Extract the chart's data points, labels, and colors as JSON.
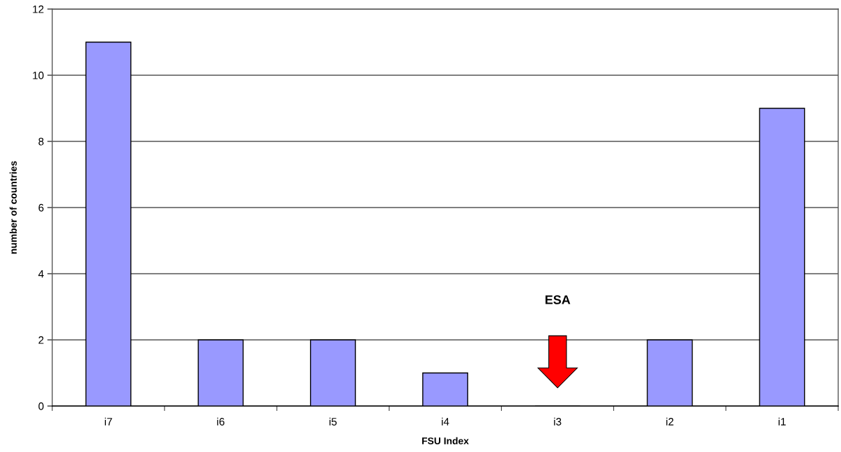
{
  "chart_data": {
    "type": "bar",
    "xlabel": "FSU Index",
    "ylabel": "number of countries",
    "categories": [
      "i7",
      "i6",
      "i5",
      "i4",
      "i3",
      "i2",
      "i1"
    ],
    "values": [
      11,
      2,
      2,
      1,
      0,
      2,
      9
    ],
    "color": "#9999ff",
    "ylim": [
      0,
      12
    ],
    "yticks": [
      0,
      2,
      4,
      6,
      8,
      10,
      12
    ],
    "grid": "y",
    "legend": false,
    "annotations": [
      "ESA"
    ]
  }
}
